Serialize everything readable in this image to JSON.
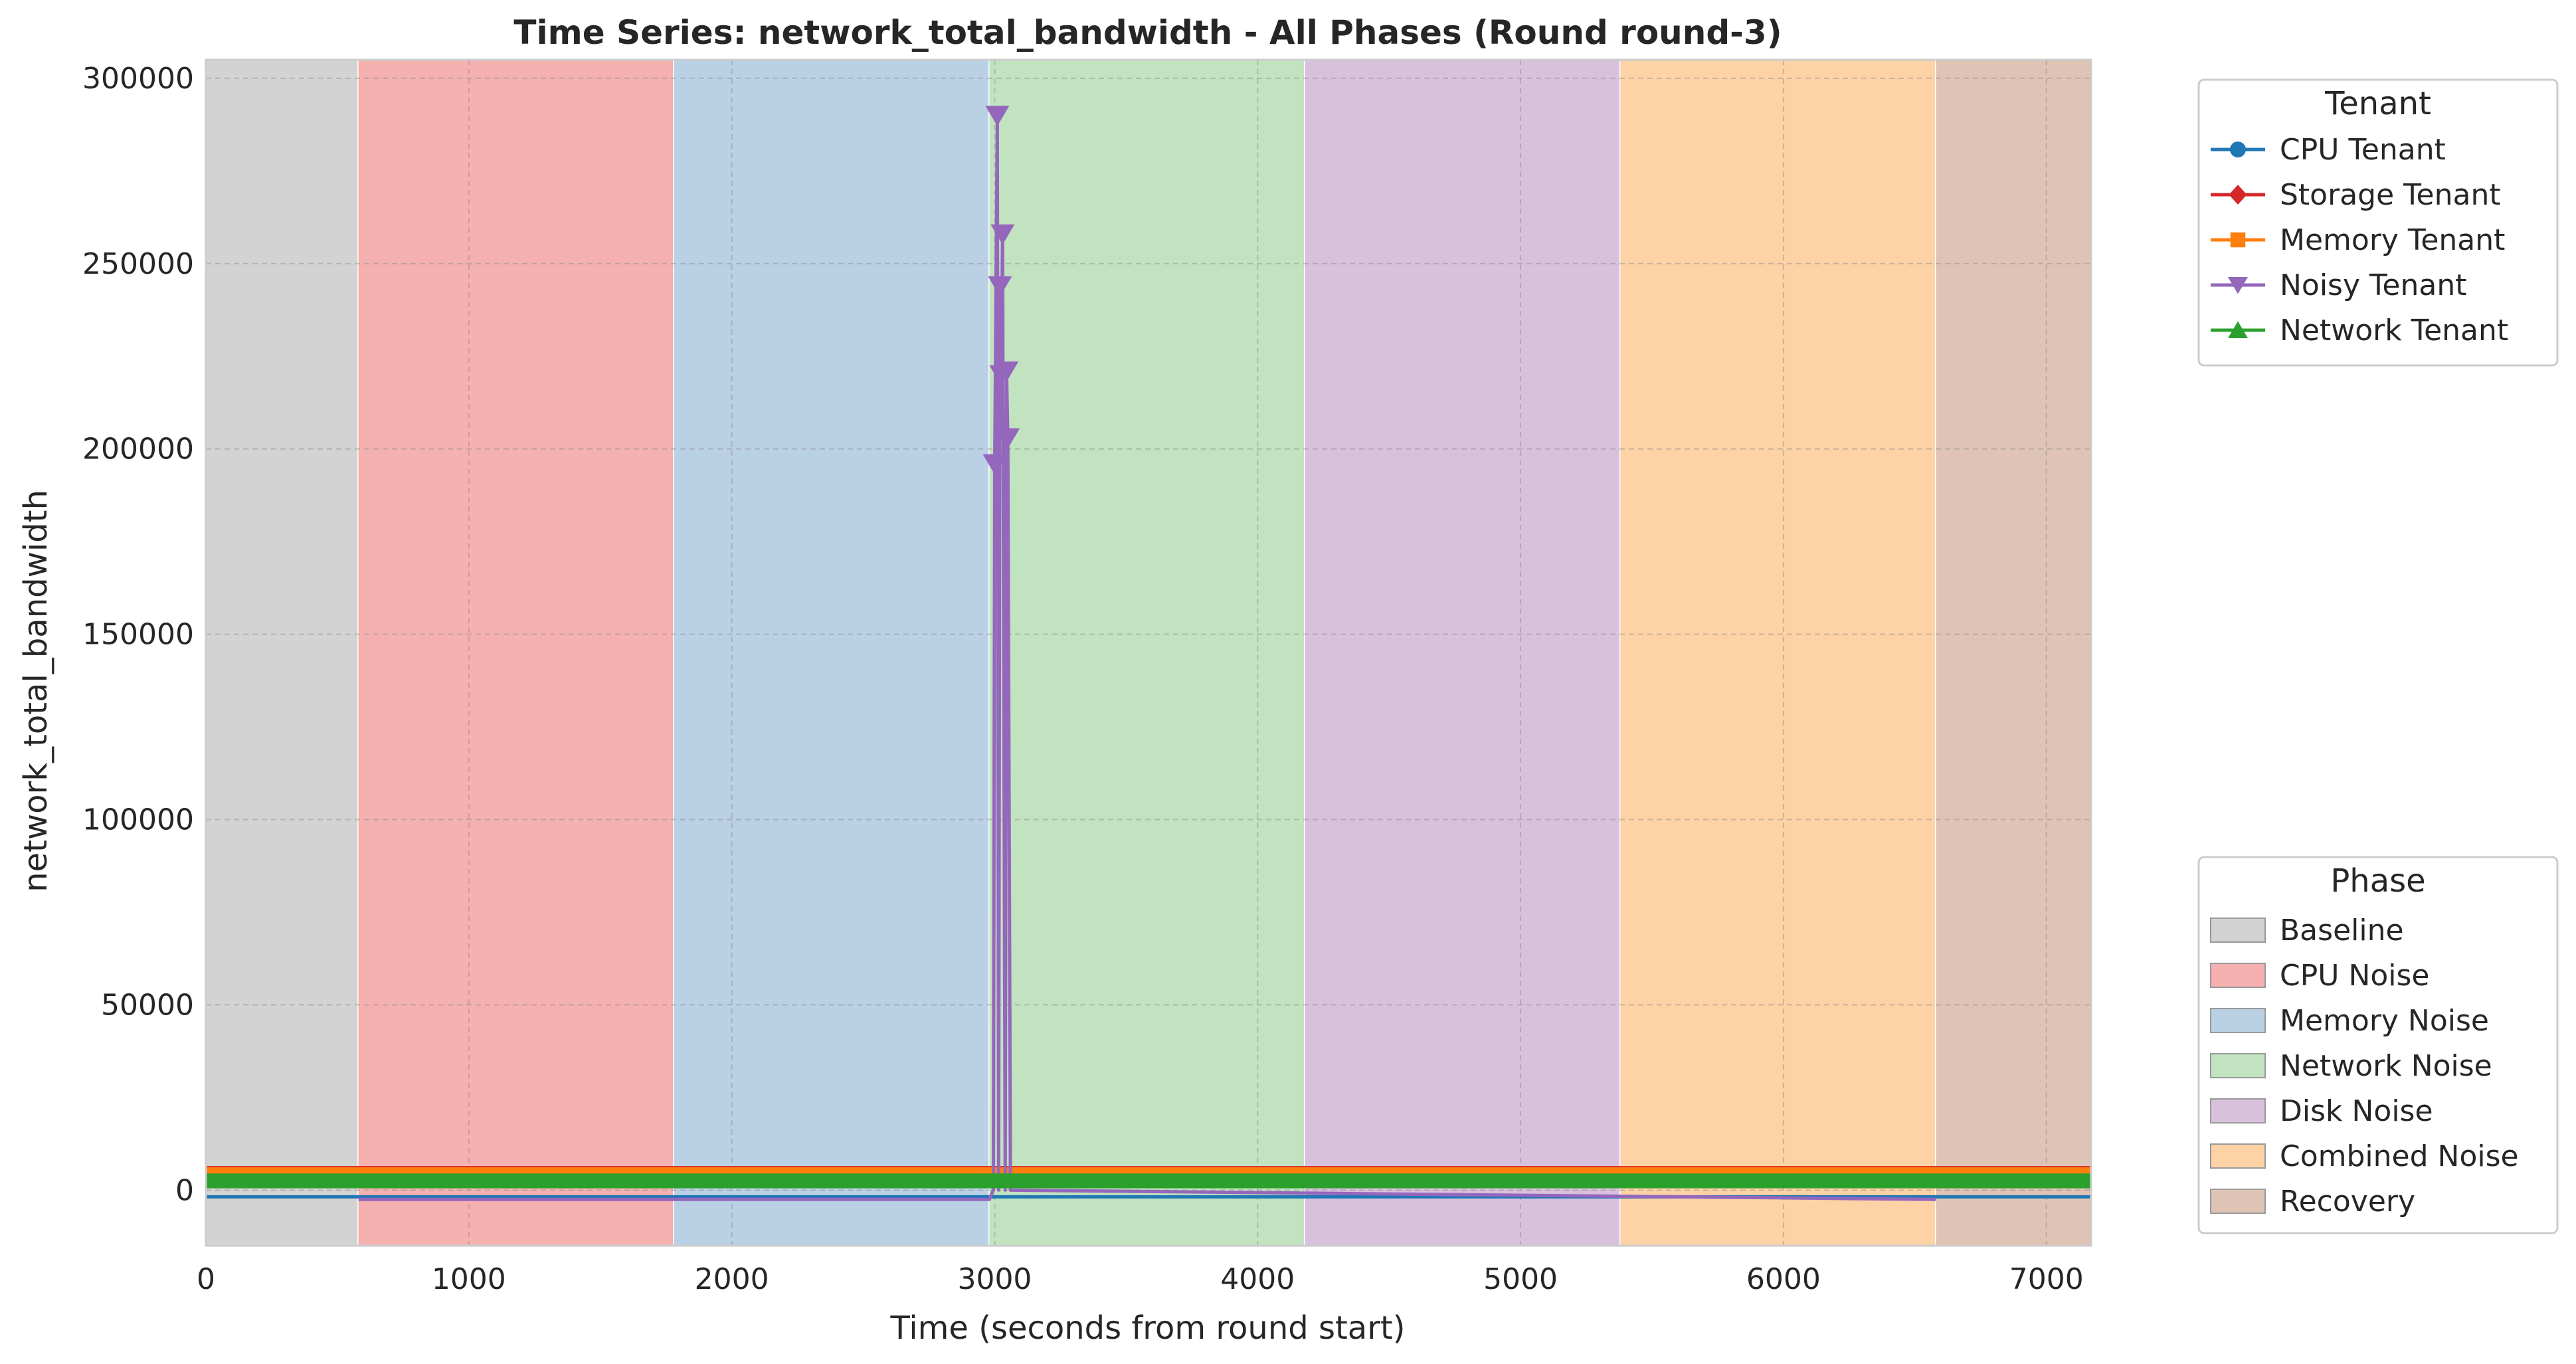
{
  "chart_data": {
    "type": "line",
    "title": "Time Series: network_total_bandwidth - All Phases (Round round-3)",
    "xlabel": "Time (seconds from round start)",
    "ylabel": "network_total_bandwidth",
    "xlim": [
      0,
      7170
    ],
    "ylim": [
      -15000,
      305000
    ],
    "x_ticks": [
      0,
      1000,
      2000,
      3000,
      4000,
      5000,
      6000,
      7000
    ],
    "y_ticks": [
      0,
      50000,
      100000,
      150000,
      200000,
      250000,
      300000
    ],
    "grid": true,
    "phases": [
      {
        "name": "Baseline",
        "start": 0,
        "end": 580,
        "color": "#d3d3d3"
      },
      {
        "name": "CPU Noise",
        "start": 580,
        "end": 1780,
        "color": "#f5b0b0"
      },
      {
        "name": "Memory Noise",
        "start": 1780,
        "end": 2980,
        "color": "#bad0e5"
      },
      {
        "name": "Network Noise",
        "start": 2980,
        "end": 4180,
        "color": "#c1e3bf"
      },
      {
        "name": "Disk Noise",
        "start": 4180,
        "end": 5380,
        "color": "#d9c0dd"
      },
      {
        "name": "Combined Noise",
        "start": 5380,
        "end": 6580,
        "color": "#fdd2a5"
      },
      {
        "name": "Recovery",
        "start": 6580,
        "end": 7170,
        "color": "#dfc4b5"
      }
    ],
    "series": [
      {
        "name": "CPU Tenant",
        "color": "#1f77b4",
        "marker": "circle",
        "x": [
          0,
          7170
        ],
        "y": [
          -1800,
          -1800
        ],
        "band": [
          -2000,
          -1500
        ]
      },
      {
        "name": "Storage Tenant",
        "color": "#d62728",
        "marker": "diamond",
        "x": [
          0,
          7170
        ],
        "y": [
          5500,
          5500
        ],
        "band": [
          4500,
          6500
        ]
      },
      {
        "name": "Memory Tenant",
        "color": "#ff7f0e",
        "marker": "square",
        "x": [
          0,
          7170
        ],
        "y": [
          5000,
          5000
        ],
        "band": [
          3800,
          6200
        ]
      },
      {
        "name": "Noisy Tenant",
        "color": "#9467bd",
        "marker": "triangle-down",
        "x": [
          580,
          2980,
          2995,
          3000,
          3010,
          3015,
          3020,
          3025,
          3030,
          3040,
          3045,
          3050,
          3060,
          6580
        ],
        "y": [
          -2500,
          -2500,
          0,
          196000,
          290000,
          0,
          244000,
          220000,
          258000,
          0,
          221000,
          203000,
          0,
          -2500
        ]
      },
      {
        "name": "Network Tenant",
        "color": "#2ca02c",
        "marker": "triangle-up",
        "x": [
          0,
          7170
        ],
        "y": [
          2500,
          2500
        ],
        "band": [
          500,
          4500
        ]
      }
    ],
    "legends": [
      {
        "title": "Tenant",
        "placement": "top-right outside",
        "entries": [
          "CPU Tenant",
          "Storage Tenant",
          "Memory Tenant",
          "Noisy Tenant",
          "Network Tenant"
        ]
      },
      {
        "title": "Phase",
        "placement": "bottom-right outside",
        "entries": [
          "Baseline",
          "CPU Noise",
          "Memory Noise",
          "Network Noise",
          "Disk Noise",
          "Combined Noise",
          "Recovery"
        ]
      }
    ]
  }
}
